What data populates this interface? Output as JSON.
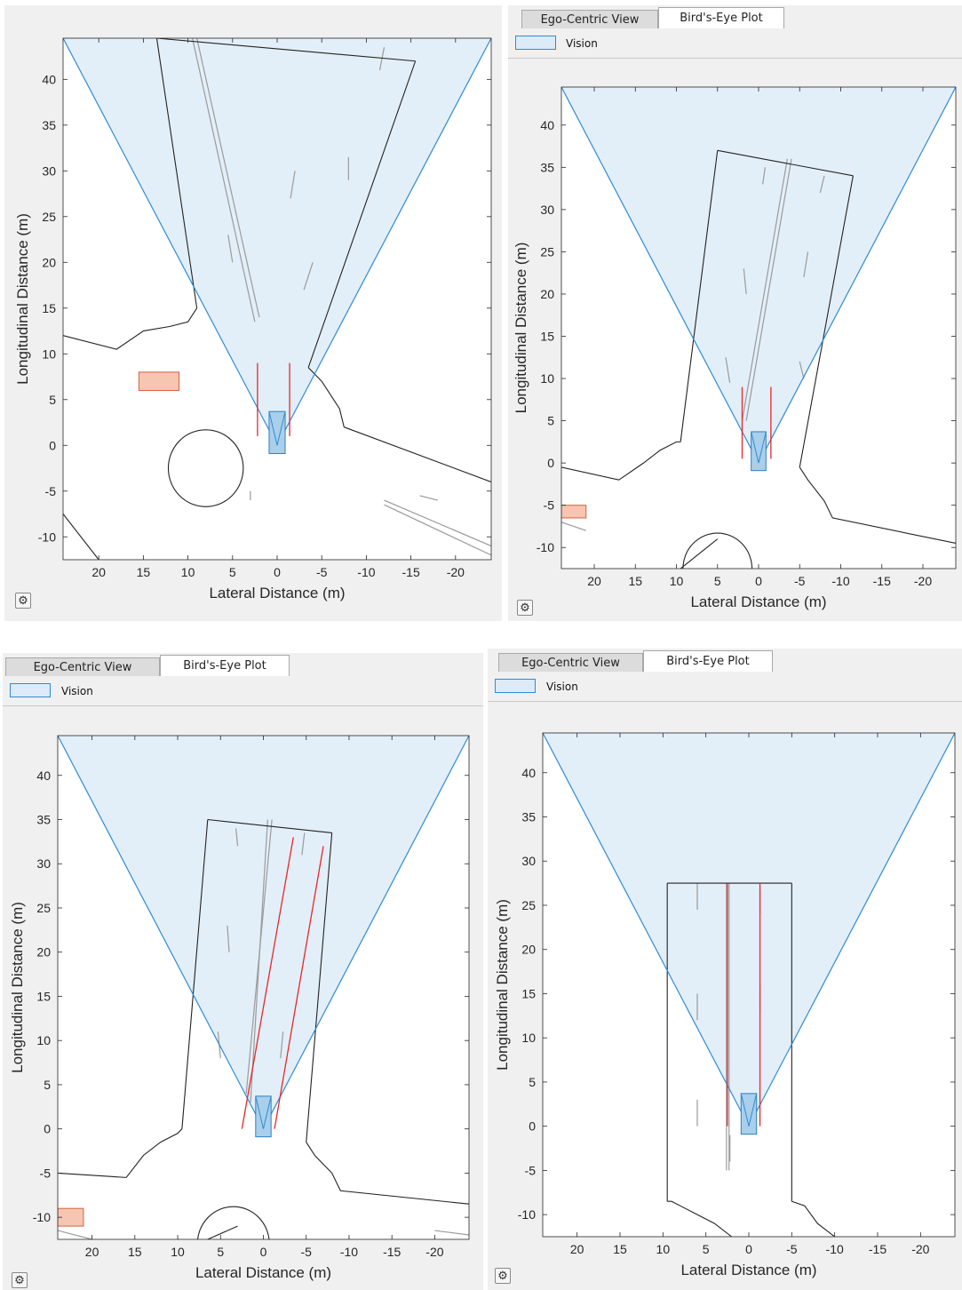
{
  "legend": {
    "label": "Vision",
    "swatch_color": "#dcebf7",
    "border_color": "#2f8bd6"
  },
  "tabs": [
    {
      "label": "Ego-Centric View"
    },
    {
      "label": "Bird's-Eye Plot"
    }
  ],
  "active_tab": "Bird's-Eye Plot",
  "axes": {
    "xlabel": "Lateral Distance (m)",
    "ylabel": "Longitudinal Distance (m)",
    "xticks": [
      "20",
      "15",
      "10",
      "5",
      "0",
      "-5",
      "-10",
      "-15",
      "-20"
    ],
    "yticks": [
      "40",
      "35",
      "30",
      "25",
      "20",
      "15",
      "10",
      "5",
      "0",
      "-5",
      "-10"
    ],
    "xlim": [
      24,
      -24
    ],
    "ylim": [
      -12.5,
      44.5
    ]
  },
  "colors": {
    "coverage_fill": "#e3eff8",
    "coverage_edge": "#2f8bd6",
    "ego_fill": "#a9cfea",
    "ego_edge": "#2f7fc1",
    "lane_detection": "#e8262a",
    "road_edge": "#222222",
    "lane_marking": "#9a9a9a",
    "target_fill": "#f7c6b3",
    "target_edge": "#d9603b"
  },
  "plots": [
    {
      "id": "top-left",
      "show_tabs": false
    },
    {
      "id": "top-right",
      "show_tabs": true
    },
    {
      "id": "bottom-left",
      "show_tabs": true
    },
    {
      "id": "bottom-right",
      "show_tabs": true
    }
  ]
}
